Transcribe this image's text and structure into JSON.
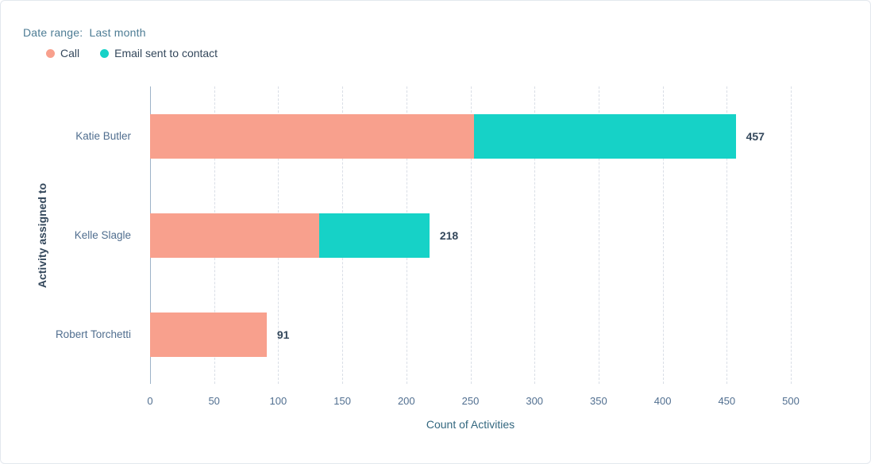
{
  "header": {
    "date_range_label": "Date range:",
    "date_range_value": "Last month"
  },
  "legend": [
    {
      "label": "Call",
      "color": "#f8a08d"
    },
    {
      "label": "Email sent to contact",
      "color": "#16d2c7"
    }
  ],
  "chart_data": {
    "type": "bar",
    "orientation": "horizontal",
    "stacked": true,
    "title": "",
    "xlabel": "Count of Activities",
    "ylabel": "Activity assigned to",
    "categories": [
      "Katie Butler",
      "Kelle Slagle",
      "Robert Torchetti"
    ],
    "series": [
      {
        "name": "Call",
        "color": "#f8a08d",
        "values": [
          253,
          132,
          91
        ]
      },
      {
        "name": "Email sent to contact",
        "color": "#16d2c7",
        "values": [
          204,
          86,
          0
        ]
      }
    ],
    "totals": [
      457,
      218,
      91
    ],
    "xlim": [
      0,
      500
    ],
    "xticks": [
      0,
      50,
      100,
      150,
      200,
      250,
      300,
      350,
      400,
      450,
      500
    ],
    "grid": "dashed-vertical",
    "legend_position": "top-left"
  }
}
